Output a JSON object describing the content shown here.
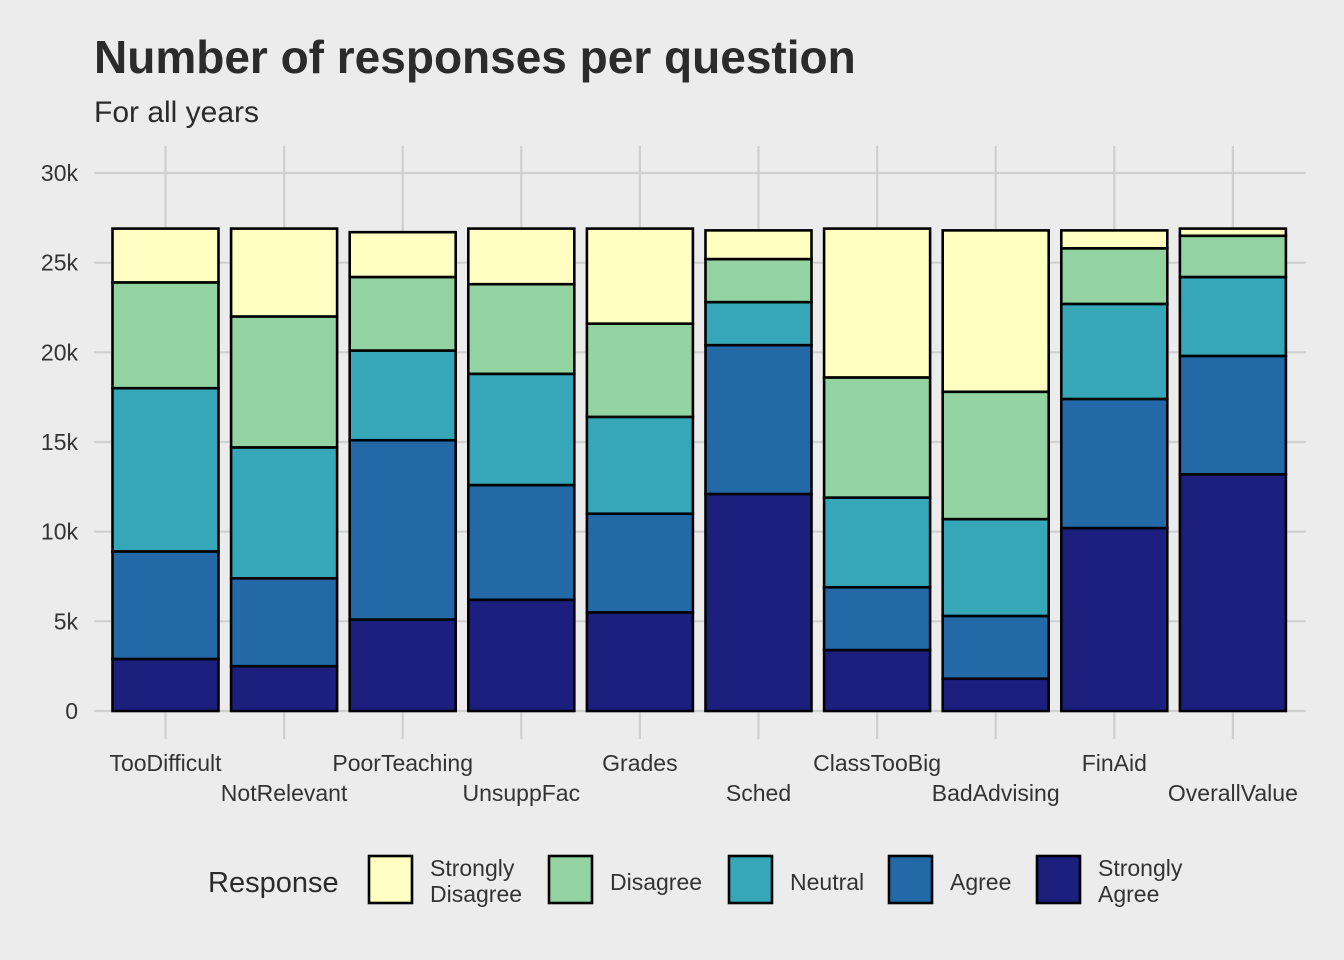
{
  "chart_data": {
    "type": "bar",
    "stacked": true,
    "title": "Number of responses per question",
    "subtitle": "For all years",
    "xlabel": "",
    "ylabel": "",
    "ylim": [
      0,
      30000
    ],
    "yticks": [
      0,
      5000,
      10000,
      15000,
      20000,
      25000,
      30000
    ],
    "ytick_labels": [
      "0",
      "5k",
      "10k",
      "15k",
      "20k",
      "25k",
      "30k"
    ],
    "grid": true,
    "legend_position": "bottom",
    "legend_title": "Response",
    "categories": [
      "TooDifficult",
      "NotRelevant",
      "PoorTeaching",
      "UnsuppFac",
      "Grades",
      "Sched",
      "ClassTooBig",
      "BadAdvising",
      "FinAid",
      "OverallValue"
    ],
    "series": [
      {
        "name": "Strongly Agree",
        "color": "#1c1f7d",
        "values": [
          2900,
          2500,
          5100,
          6200,
          5500,
          12100,
          3400,
          1800,
          10200,
          13200
        ]
      },
      {
        "name": "Agree",
        "color": "#2369a8",
        "values": [
          6000,
          4900,
          10000,
          6400,
          5500,
          8300,
          3500,
          3500,
          7200,
          6600
        ]
      },
      {
        "name": "Neutral",
        "color": "#36a7b9",
        "values": [
          9100,
          7300,
          5000,
          6200,
          5400,
          2400,
          5000,
          5400,
          5300,
          4400
        ]
      },
      {
        "name": "Disagree",
        "color": "#93d3a2",
        "values": [
          5900,
          7300,
          4100,
          5000,
          5200,
          2400,
          6700,
          7100,
          3100,
          2300
        ]
      },
      {
        "name": "Strongly Disagree",
        "color": "#ffffc1",
        "values": [
          3000,
          4900,
          2500,
          3100,
          5300,
          1600,
          8300,
          9000,
          1000,
          400
        ]
      }
    ],
    "legend_order": [
      "Strongly Disagree",
      "Disagree",
      "Neutral",
      "Agree",
      "Strongly Agree"
    ],
    "legend_labels": {
      "Strongly Disagree": [
        "Strongly",
        "Disagree"
      ],
      "Disagree": [
        "Disagree"
      ],
      "Neutral": [
        "Neutral"
      ],
      "Agree": [
        "Agree"
      ],
      "Strongly Agree": [
        "Strongly",
        "Agree"
      ]
    }
  }
}
